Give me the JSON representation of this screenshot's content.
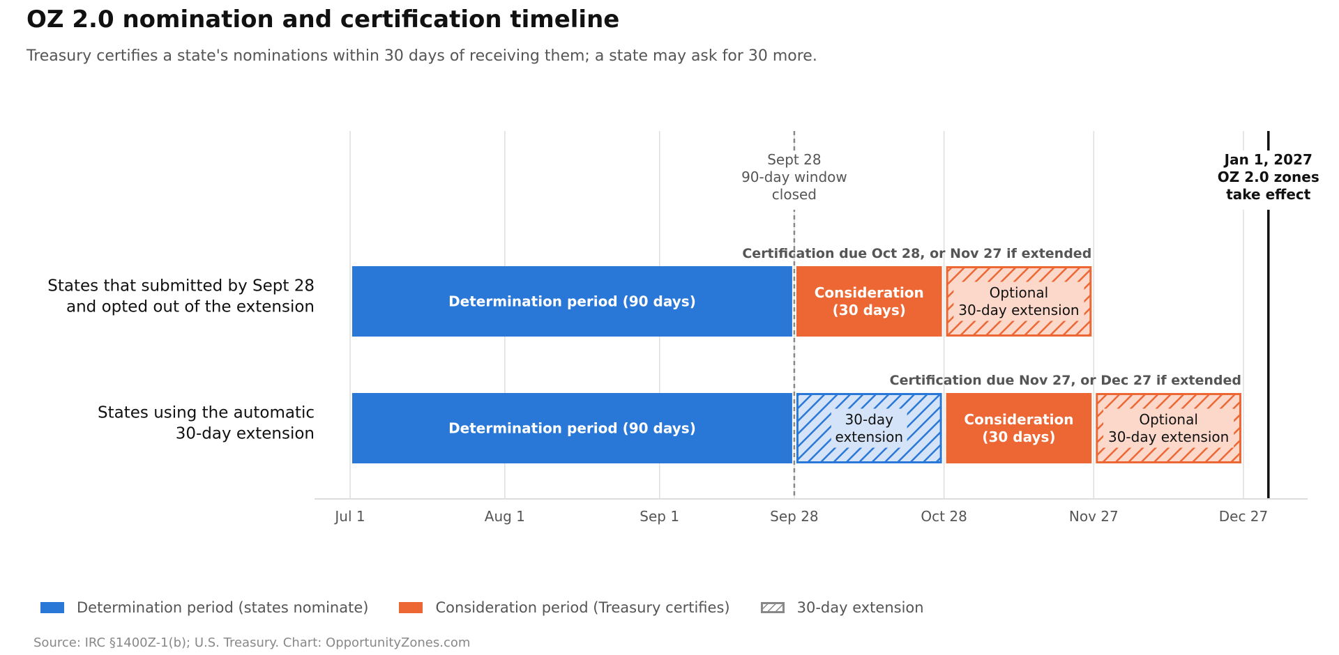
{
  "title": "OZ 2.0 nomination and certification timeline",
  "subtitle": "Treasury certifies a state's nominations within 30 days of receiving them; a state may ask for 30 more.",
  "source": "Source: IRC §1400Z-1(b); U.S. Treasury. Chart: OpportunityZones.com",
  "colors": {
    "determination": "#2977d6",
    "consideration": "#ec6734",
    "extension_fill_orange": "#fbd8ca",
    "extension_fill_blue": "#d4e3f7",
    "grid": "#dddddd",
    "marker_gray": "#888888",
    "marker_black": "#111111"
  },
  "legend": [
    {
      "label": "Determination period (states nominate)",
      "kind": "determination"
    },
    {
      "label": "Consideration period (Treasury certifies)",
      "kind": "consideration"
    },
    {
      "label": "30-day extension",
      "kind": "extension"
    }
  ],
  "chart_data": {
    "type": "gantt",
    "x_unit": "date",
    "xlim": [
      "2026-07-01",
      "2026-12-27"
    ],
    "x_ticks": [
      {
        "date": "2026-07-01",
        "label": "Jul 1"
      },
      {
        "date": "2026-08-01",
        "label": "Aug 1"
      },
      {
        "date": "2026-09-01",
        "label": "Sep 1"
      },
      {
        "date": "2026-09-28",
        "label": "Sep 28"
      },
      {
        "date": "2026-10-28",
        "label": "Oct 28"
      },
      {
        "date": "2026-11-27",
        "label": "Nov 27"
      },
      {
        "date": "2026-12-27",
        "label": "Dec 27"
      }
    ],
    "grid": true,
    "rows": [
      {
        "label": [
          "States that submitted by Sept 28",
          "and opted out of the extension"
        ],
        "annotation": "Certification due Oct 28, or Nov 27 if extended",
        "segments": [
          {
            "start": "2026-07-01",
            "end": "2026-09-28",
            "kind": "determination",
            "text": [
              "Determination period (90 days)"
            ]
          },
          {
            "start": "2026-09-28",
            "end": "2026-10-28",
            "kind": "consideration",
            "text": [
              "Consideration",
              "(30 days)"
            ]
          },
          {
            "start": "2026-10-28",
            "end": "2026-11-27",
            "kind": "extension-orange",
            "text": [
              "Optional",
              "30-day extension"
            ]
          }
        ]
      },
      {
        "label": [
          "States using the automatic",
          "30-day extension"
        ],
        "annotation": "Certification due Nov 27, or Dec 27 if extended",
        "segments": [
          {
            "start": "2026-07-01",
            "end": "2026-09-28",
            "kind": "determination",
            "text": [
              "Determination period (90 days)"
            ]
          },
          {
            "start": "2026-09-28",
            "end": "2026-10-28",
            "kind": "extension-blue",
            "text": [
              "30-day",
              "extension"
            ]
          },
          {
            "start": "2026-10-28",
            "end": "2026-11-27",
            "kind": "consideration",
            "text": [
              "Consideration",
              "(30 days)"
            ]
          },
          {
            "start": "2026-11-27",
            "end": "2026-12-27",
            "kind": "extension-orange",
            "text": [
              "Optional",
              "30-day extension"
            ]
          }
        ]
      }
    ],
    "markers": [
      {
        "date": "2026-09-28",
        "style": "dashed",
        "text": [
          "Sept 28",
          "90-day window",
          "closed"
        ]
      },
      {
        "date": "2027-01-01",
        "style": "solid",
        "text": [
          "Jan 1, 2027",
          "OZ 2.0 zones",
          "take effect"
        ]
      }
    ]
  }
}
